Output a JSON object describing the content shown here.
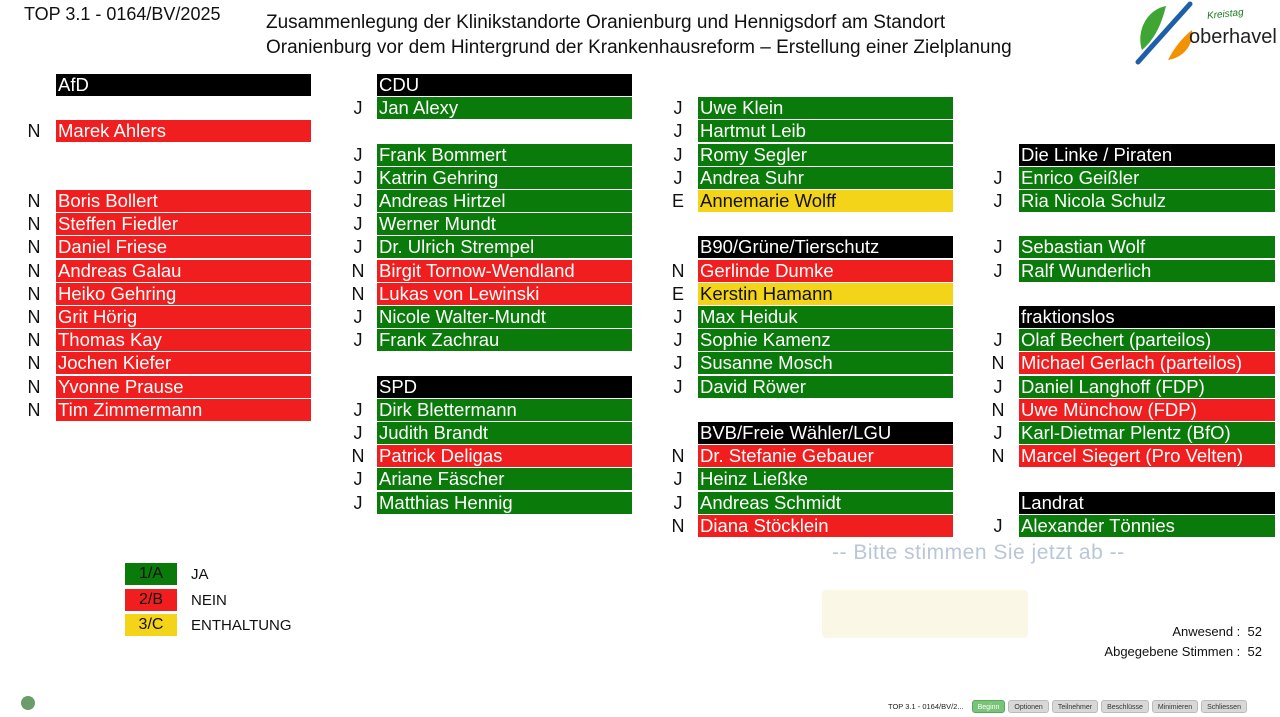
{
  "header": {
    "top_ref": "TOP 3.1 - 0164/BV/2025",
    "title_line1": "Zusammenlegung der Klinikstandorte Oranienburg und Hennigsdorf am Standort",
    "title_line2": "Oranienburg vor dem Hintergrund der Krankenhausreform – Erstellung einer Zielplanung"
  },
  "logo": {
    "small": "Kreistag",
    "main": "oberhavel"
  },
  "colors": {
    "ja": "#0a7a0a",
    "nein": "#f01e1e",
    "enthaltung": "#f4d418",
    "header": "#000000"
  },
  "columns": [
    {
      "rows": [
        {
          "type": "header",
          "label": "AfD"
        },
        {
          "type": "blank"
        },
        {
          "type": "member",
          "vote": "N",
          "name": "Marek Ahlers"
        },
        {
          "type": "blank"
        },
        {
          "type": "blank"
        },
        {
          "type": "member",
          "vote": "N",
          "name": "Boris Bollert"
        },
        {
          "type": "member",
          "vote": "N",
          "name": "Steffen Fiedler"
        },
        {
          "type": "member",
          "vote": "N",
          "name": "Daniel Friese"
        },
        {
          "type": "member",
          "vote": "N",
          "name": "Andreas Galau"
        },
        {
          "type": "member",
          "vote": "N",
          "name": "Heiko Gehring"
        },
        {
          "type": "member",
          "vote": "N",
          "name": "Grit Hörig"
        },
        {
          "type": "member",
          "vote": "N",
          "name": "Thomas Kay"
        },
        {
          "type": "member",
          "vote": "N",
          "name": "Jochen Kiefer"
        },
        {
          "type": "member",
          "vote": "N",
          "name": "Yvonne Prause"
        },
        {
          "type": "member",
          "vote": "N",
          "name": "Tim Zimmermann"
        }
      ]
    },
    {
      "rows": [
        {
          "type": "header",
          "label": "CDU"
        },
        {
          "type": "member",
          "vote": "J",
          "name": "Jan Alexy"
        },
        {
          "type": "blank"
        },
        {
          "type": "member",
          "vote": "J",
          "name": "Frank Bommert"
        },
        {
          "type": "member",
          "vote": "J",
          "name": "Katrin Gehring"
        },
        {
          "type": "member",
          "vote": "J",
          "name": "Andreas Hirtzel"
        },
        {
          "type": "member",
          "vote": "J",
          "name": "Werner Mundt"
        },
        {
          "type": "member",
          "vote": "J",
          "name": "Dr. Ulrich Strempel"
        },
        {
          "type": "member",
          "vote": "N",
          "name": "Birgit Tornow-Wendland"
        },
        {
          "type": "member",
          "vote": "N",
          "name": "Lukas von Lewinski"
        },
        {
          "type": "member",
          "vote": "J",
          "name": "Nicole Walter-Mundt"
        },
        {
          "type": "member",
          "vote": "J",
          "name": "Frank Zachrau"
        },
        {
          "type": "blank"
        },
        {
          "type": "header",
          "label": "SPD"
        },
        {
          "type": "member",
          "vote": "J",
          "name": "Dirk Blettermann"
        },
        {
          "type": "member",
          "vote": "J",
          "name": "Judith Brandt"
        },
        {
          "type": "member",
          "vote": "N",
          "name": "Patrick Deligas"
        },
        {
          "type": "member",
          "vote": "J",
          "name": "Ariane Fäscher"
        },
        {
          "type": "member",
          "vote": "J",
          "name": "Matthias Hennig"
        }
      ]
    },
    {
      "rows": [
        {
          "type": "blank"
        },
        {
          "type": "member",
          "vote": "J",
          "name": "Uwe Klein"
        },
        {
          "type": "member",
          "vote": "J",
          "name": "Hartmut Leib"
        },
        {
          "type": "member",
          "vote": "J",
          "name": "Romy Segler"
        },
        {
          "type": "member",
          "vote": "J",
          "name": "Andrea Suhr"
        },
        {
          "type": "member",
          "vote": "E",
          "name": "Annemarie Wolff"
        },
        {
          "type": "blank"
        },
        {
          "type": "header",
          "label": "B90/Grüne/Tierschutz"
        },
        {
          "type": "member",
          "vote": "N",
          "name": "Gerlinde Dumke"
        },
        {
          "type": "member",
          "vote": "E",
          "name": "Kerstin Hamann"
        },
        {
          "type": "member",
          "vote": "J",
          "name": "Max Heiduk"
        },
        {
          "type": "member",
          "vote": "J",
          "name": "Sophie Kamenz"
        },
        {
          "type": "member",
          "vote": "J",
          "name": "Susanne Mosch"
        },
        {
          "type": "member",
          "vote": "J",
          "name": "David Röwer"
        },
        {
          "type": "blank"
        },
        {
          "type": "header",
          "label": "BVB/Freie Wähler/LGU"
        },
        {
          "type": "member",
          "vote": "N",
          "name": "Dr. Stefanie Gebauer"
        },
        {
          "type": "member",
          "vote": "J",
          "name": "Heinz Ließke"
        },
        {
          "type": "member",
          "vote": "J",
          "name": "Andreas Schmidt"
        },
        {
          "type": "member",
          "vote": "N",
          "name": "Diana Stöcklein"
        }
      ]
    },
    {
      "rows": [
        {
          "type": "blank"
        },
        {
          "type": "blank"
        },
        {
          "type": "blank"
        },
        {
          "type": "header",
          "label": "Die Linke / Piraten"
        },
        {
          "type": "member",
          "vote": "J",
          "name": "Enrico Geißler"
        },
        {
          "type": "member",
          "vote": "J",
          "name": "Ria Nicola Schulz"
        },
        {
          "type": "blank"
        },
        {
          "type": "member",
          "vote": "J",
          "name": "Sebastian Wolf"
        },
        {
          "type": "member",
          "vote": "J",
          "name": "Ralf Wunderlich"
        },
        {
          "type": "blank"
        },
        {
          "type": "header",
          "label": "fraktionslos"
        },
        {
          "type": "member",
          "vote": "J",
          "name": "Olaf Bechert (parteilos)"
        },
        {
          "type": "member",
          "vote": "N",
          "name": "Michael Gerlach (parteilos)"
        },
        {
          "type": "member",
          "vote": "J",
          "name": "Daniel Langhoff (FDP)"
        },
        {
          "type": "member",
          "vote": "N",
          "name": "Uwe Münchow (FDP)"
        },
        {
          "type": "member",
          "vote": "J",
          "name": "Karl-Dietmar Plentz (BfO)"
        },
        {
          "type": "member",
          "vote": "N",
          "name": "Marcel Siegert (Pro Velten)"
        },
        {
          "type": "blank"
        },
        {
          "type": "header",
          "label": "Landrat"
        },
        {
          "type": "member",
          "vote": "J",
          "name": "Alexander Tönnies"
        }
      ]
    }
  ],
  "legend": [
    {
      "code": "1/A",
      "label": "JA",
      "vote": "J"
    },
    {
      "code": "2/B",
      "label": "NEIN",
      "vote": "N"
    },
    {
      "code": "3/C",
      "label": "ENTHALTUNG",
      "vote": "E"
    }
  ],
  "prompt": "-- Bitte stimmen Sie jetzt ab --",
  "stats": {
    "present_label": "Anwesend :",
    "present_value": "52",
    "votes_label": "Abgegebene Stimmen :",
    "votes_value": "52"
  },
  "taskbar": {
    "title": "TOP 3.1 - 0164/BV/2...",
    "buttons": [
      "Beginn",
      "Optionen",
      "Teilnehmer",
      "Beschlüsse",
      "Minimieren",
      "Schliessen"
    ]
  }
}
